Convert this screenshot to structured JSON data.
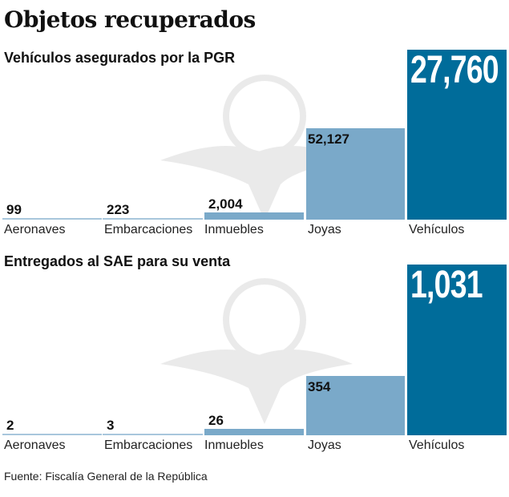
{
  "title": "Objetos recuperados",
  "source": "Fuente: Fiscalía General de la República",
  "colors": {
    "dark": "#006c9a",
    "light": "#7aa9c9",
    "thin": "#a8c6dc"
  },
  "chart_data": [
    {
      "type": "bar",
      "title": "Vehículos asegurados por la PGR",
      "categories": [
        "Aeronaves",
        "Embarcaciones",
        "Inmuebles",
        "Joyas",
        "Vehículos"
      ],
      "values": [
        99,
        223,
        2004,
        52127,
        27760
      ],
      "labels": [
        "99",
        "223",
        "2,004",
        "52,127",
        "27,760"
      ]
    },
    {
      "type": "bar",
      "title": "Entregados al SAE para su venta",
      "categories": [
        "Aeronaves",
        "Embarcaciones",
        "Inmuebles",
        "Joyas",
        "Vehículos"
      ],
      "values": [
        2,
        3,
        26,
        354,
        1031
      ],
      "labels": [
        "2",
        "3",
        "26",
        "354",
        "1,031"
      ]
    }
  ]
}
